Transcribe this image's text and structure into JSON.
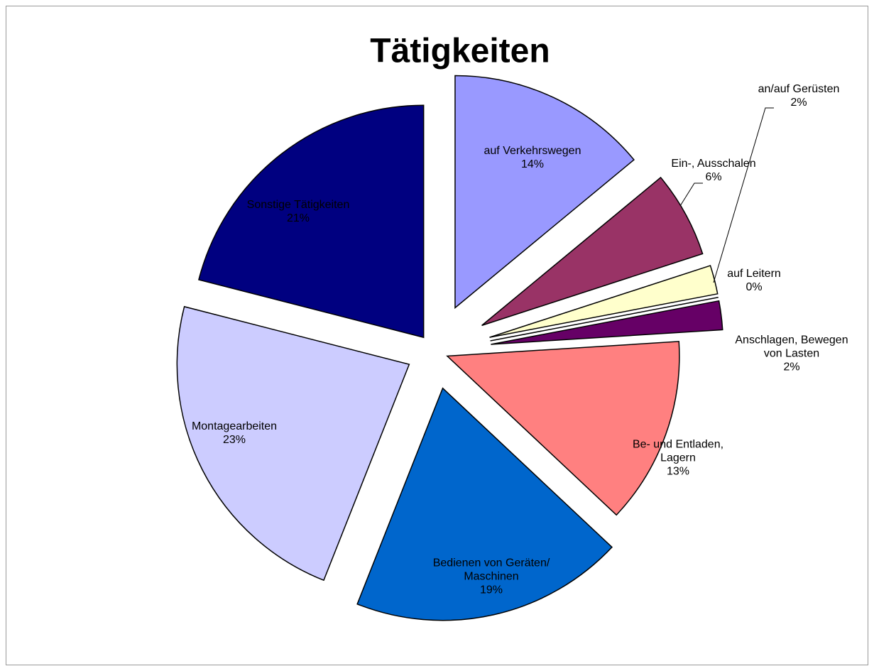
{
  "chart_data": {
    "type": "pie",
    "title": "Tätigkeiten",
    "categories": [
      "auf Verkehrswegen",
      "Ein-, Ausschalen",
      "an/auf Gerüsten",
      "auf Leitern",
      "Anschlagen, Bewegen von Lasten",
      "Be- und Entladen, Lagern",
      "Bedienen von Geräten/ Maschinen",
      "Montagearbeiten",
      "Sonstige Tätigkeiten"
    ],
    "values": [
      14,
      6,
      2,
      0,
      2,
      13,
      19,
      23,
      21
    ],
    "value_labels": [
      "14%",
      "6%",
      "2%",
      "0%",
      "2%",
      "13%",
      "19%",
      "23%",
      "21%"
    ],
    "colors": [
      "#9999ff",
      "#993366",
      "#ffffcc",
      "#ccffff",
      "#660066",
      "#ff8080",
      "#0066cc",
      "#ccccff",
      "#000080"
    ]
  }
}
